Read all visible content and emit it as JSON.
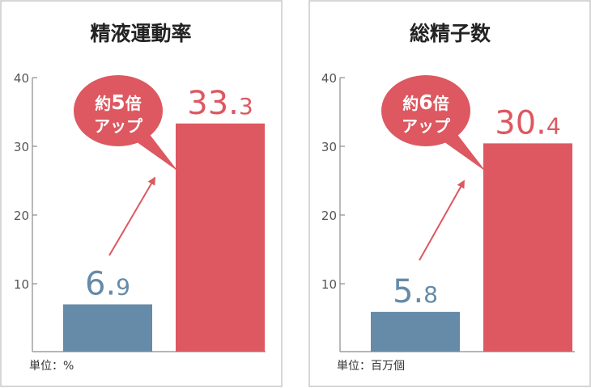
{
  "chart_data": [
    {
      "type": "bar",
      "title": "精液運動率",
      "categories": [
        "",
        ""
      ],
      "values": [
        6.9,
        33.3
      ],
      "value_labels": [
        {
          "int": "6.",
          "dec": "9"
        },
        {
          "int": "33.",
          "dec": "3"
        }
      ],
      "ylim": [
        0,
        40
      ],
      "yticks": [
        "10",
        "20",
        "30",
        "40"
      ],
      "unit_label": "単位：%",
      "callout": {
        "line1_prefix": "約",
        "line1_number": "5",
        "line1_suffix": "倍",
        "line2": "アップ"
      },
      "grid": false
    },
    {
      "type": "bar",
      "title": "総精子数",
      "categories": [
        "",
        ""
      ],
      "values": [
        5.8,
        30.4
      ],
      "value_labels": [
        {
          "int": "5.",
          "dec": "8"
        },
        {
          "int": "30.",
          "dec": "4"
        }
      ],
      "ylim": [
        0,
        40
      ],
      "yticks": [
        "10",
        "20",
        "30",
        "40"
      ],
      "unit_label": "単位：百万個",
      "callout": {
        "line1_prefix": "約",
        "line1_number": "6",
        "line1_suffix": "倍",
        "line2": "アップ"
      },
      "grid": false
    }
  ],
  "colors": {
    "before": "#658ba8",
    "after": "#dd5860",
    "bubble": "#dd5860",
    "arrow": "#dd5860",
    "before_text": "#658ba8",
    "after_text": "#dd5860"
  }
}
